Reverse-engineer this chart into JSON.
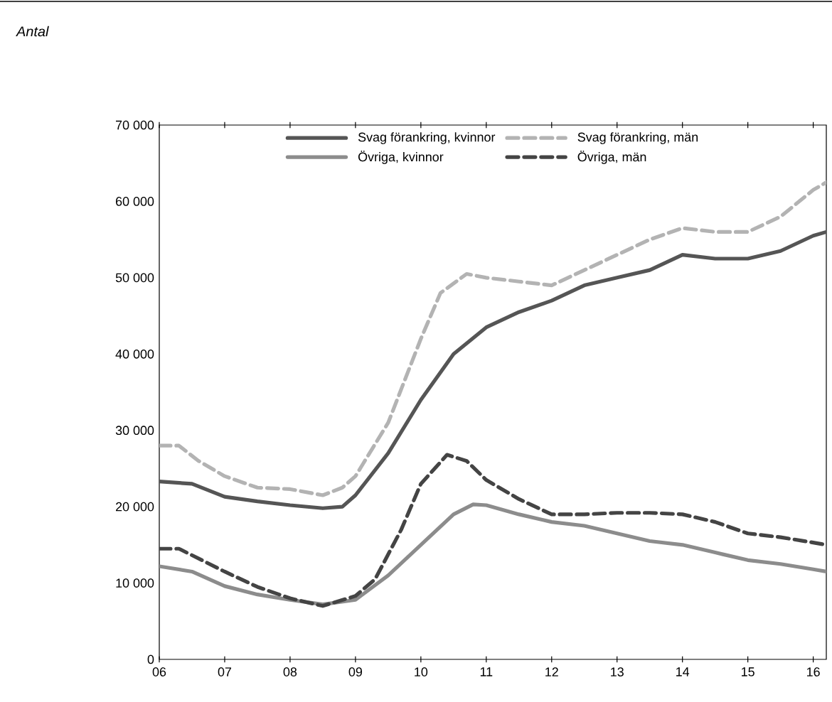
{
  "chart_data": {
    "type": "line",
    "annotations": [
      "Antal"
    ],
    "xlim": [
      2006,
      2016.2
    ],
    "ylim": [
      0,
      70000
    ],
    "xticks": [
      {
        "value": 2006,
        "label": "06"
      },
      {
        "value": 2007,
        "label": "07"
      },
      {
        "value": 2008,
        "label": "08"
      },
      {
        "value": 2009,
        "label": "09"
      },
      {
        "value": 2010,
        "label": "10"
      },
      {
        "value": 2011,
        "label": "11"
      },
      {
        "value": 2012,
        "label": "12"
      },
      {
        "value": 2013,
        "label": "13"
      },
      {
        "value": 2014,
        "label": "14"
      },
      {
        "value": 2015,
        "label": "15"
      },
      {
        "value": 2016,
        "label": "16"
      }
    ],
    "yticks": [
      0,
      {
        "value": 10000,
        "label": "10 000"
      },
      {
        "value": 20000,
        "label": "20 000"
      },
      {
        "value": 30000,
        "label": "30 000"
      },
      {
        "value": 40000,
        "label": "40 000"
      },
      {
        "value": 50000,
        "label": "50 000"
      },
      {
        "value": 60000,
        "label": "60 000"
      },
      {
        "value": 70000,
        "label": "70 000"
      }
    ],
    "legend": "top",
    "grid": false,
    "marker": "none",
    "series": [
      {
        "name": "Svag förankring, kvinnor",
        "color": "#555555",
        "line_style": "solid",
        "x": [
          2006,
          2006.5,
          2007,
          2007.5,
          2008,
          2008.5,
          2008.8,
          2009,
          2009.5,
          2010,
          2010.5,
          2011,
          2011.5,
          2012,
          2012.5,
          2013,
          2013.5,
          2014,
          2014.5,
          2015,
          2015.5,
          2016,
          2016.2
        ],
        "values": [
          23300,
          23000,
          21300,
          20700,
          20200,
          19800,
          20000,
          21500,
          27000,
          34000,
          40000,
          43500,
          45500,
          47000,
          49000,
          50000,
          51000,
          53000,
          52500,
          52500,
          53500,
          55500,
          56000
        ]
      },
      {
        "name": "Svag förankring, män",
        "color": "#b3b3b3",
        "line_style": "dashed",
        "x": [
          2006,
          2006.3,
          2006.6,
          2007,
          2007.5,
          2008,
          2008.5,
          2008.8,
          2009,
          2009.5,
          2010,
          2010.3,
          2010.7,
          2011,
          2011.5,
          2012,
          2012.5,
          2013,
          2013.5,
          2014,
          2014.5,
          2015,
          2015.5,
          2016,
          2016.2
        ],
        "values": [
          28000,
          28000,
          26000,
          24000,
          22500,
          22300,
          21500,
          22500,
          24000,
          31000,
          42000,
          48000,
          50500,
          50000,
          49500,
          49000,
          51000,
          53000,
          55000,
          56500,
          56000,
          56000,
          58000,
          61500,
          62500
        ]
      },
      {
        "name": "Övriga, kvinnor",
        "color": "#8c8c8c",
        "line_style": "solid",
        "x": [
          2006,
          2006.5,
          2007,
          2007.5,
          2008,
          2008.5,
          2009,
          2009.5,
          2010,
          2010.5,
          2010.8,
          2011,
          2011.5,
          2012,
          2012.5,
          2013,
          2013.5,
          2014,
          2014.5,
          2015,
          2015.5,
          2016,
          2016.2
        ],
        "values": [
          12200,
          11500,
          9600,
          8500,
          7800,
          7200,
          7800,
          11000,
          15000,
          19000,
          20300,
          20200,
          19000,
          18000,
          17500,
          16500,
          15500,
          15000,
          14000,
          13000,
          12500,
          11800,
          11500
        ]
      },
      {
        "name": "Övriga, män",
        "color": "#444444",
        "line_style": "dashed",
        "x": [
          2006,
          2006.3,
          2007,
          2007.5,
          2008,
          2008.5,
          2009,
          2009.3,
          2009.7,
          2010,
          2010.4,
          2010.7,
          2011,
          2011.5,
          2012,
          2012.5,
          2013,
          2013.5,
          2014,
          2014.5,
          2015,
          2015.5,
          2016,
          2016.2
        ],
        "values": [
          14500,
          14500,
          11500,
          9500,
          8000,
          7000,
          8300,
          10500,
          17000,
          23000,
          26800,
          26000,
          23500,
          21000,
          19000,
          19000,
          19200,
          19200,
          19000,
          18000,
          16500,
          16000,
          15300,
          15000
        ]
      }
    ]
  }
}
